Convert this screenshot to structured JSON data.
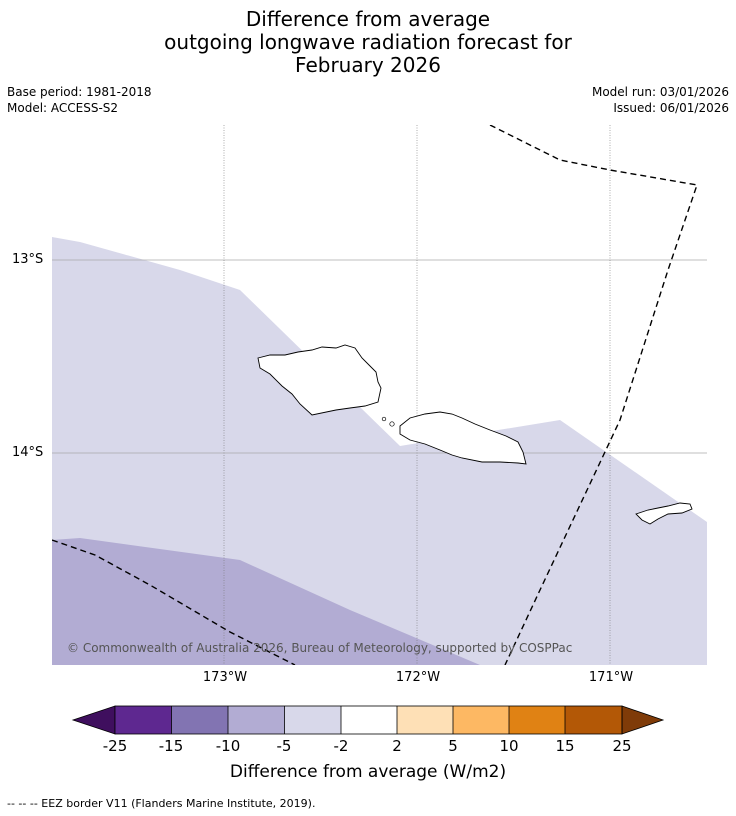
{
  "title": {
    "line1": "Difference from average",
    "line2": "outgoing longwave radiation forecast for",
    "line3": "February 2026"
  },
  "meta": {
    "base_period": "Base period: 1981-2018",
    "model": "Model: ACCESS-S2",
    "model_run": "Model run: 03/01/2026",
    "issued": "Issued: 06/01/2026"
  },
  "map": {
    "lat_labels": [
      "13°S",
      "14°S"
    ],
    "lon_labels": [
      "173°W",
      "172°W",
      "171°W"
    ],
    "copyright": "© Commonwealth of Australia 2026, Bureau of Meteorology, supported by COSPPac",
    "colors": {
      "band_m5_m2": "#d8d8ea",
      "band_m10_m5": "#b2acd3",
      "coast": "#000000"
    }
  },
  "colorbar": {
    "ticks": [
      "-25",
      "-15",
      "-10",
      "-5",
      "-2",
      "2",
      "5",
      "10",
      "15",
      "25"
    ],
    "colors": [
      "#3f0f5e",
      "#5e2890",
      "#8274b2",
      "#b2acd3",
      "#d8d8ea",
      "#ffffff",
      "#fee0b6",
      "#fdb863",
      "#e08214",
      "#b35806",
      "#7f3b08"
    ],
    "label": "Difference from average (W/m2)"
  },
  "legend": {
    "eez": "--  --  -- EEZ border V11 (Flanders Marine Institute, 2019)."
  }
}
